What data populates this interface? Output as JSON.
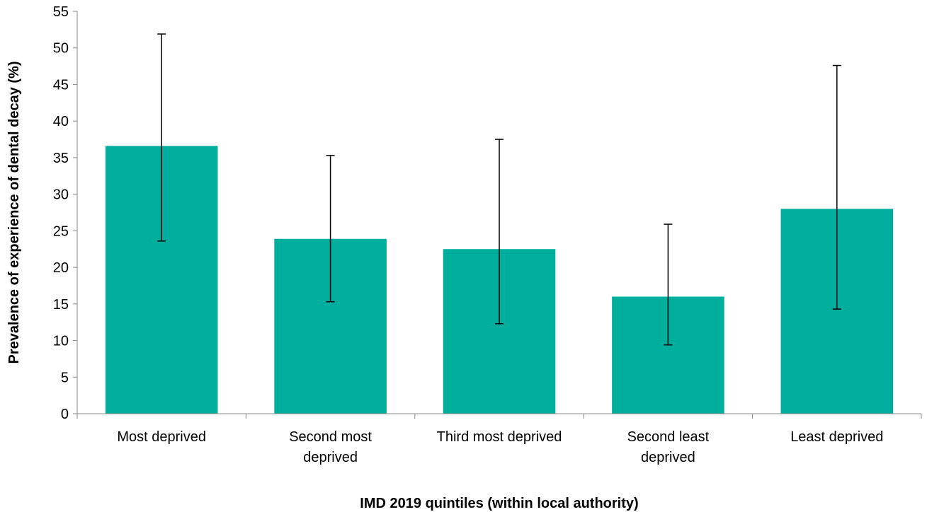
{
  "chart_data": {
    "type": "bar",
    "title": "",
    "xlabel": "IMD 2019 quintiles (within local authority)",
    "ylabel": "Prevalence of experience of dental decay (%)",
    "ylim": [
      0,
      55
    ],
    "ytick_step": 5,
    "yticks": [
      "0",
      "5",
      "10",
      "15",
      "20",
      "25",
      "30",
      "35",
      "40",
      "45",
      "50",
      "55"
    ],
    "categories": [
      [
        "Most deprived"
      ],
      [
        "Second most",
        "deprived"
      ],
      [
        "Third most deprived"
      ],
      [
        "Second least",
        "deprived"
      ],
      [
        "Least deprived"
      ]
    ],
    "values": [
      36.6,
      23.9,
      22.5,
      16.0,
      28.0
    ],
    "error_low": [
      23.6,
      15.3,
      12.3,
      9.4,
      14.3
    ],
    "error_high": [
      51.9,
      35.3,
      37.5,
      25.9,
      47.6
    ],
    "bar_color": "#00ae9e",
    "grid": false,
    "legend": "none"
  }
}
